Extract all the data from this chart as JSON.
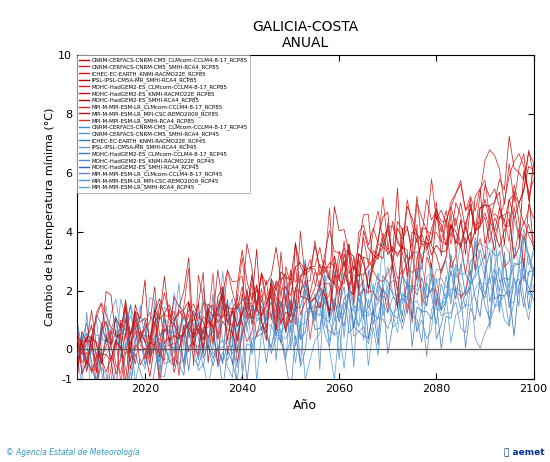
{
  "title": "GALICIA-COSTA",
  "subtitle": "ANUAL",
  "xlabel": "Año",
  "ylabel": "Cambio de la temperatura mínima (°C)",
  "xlim": [
    2006,
    2100
  ],
  "ylim": [
    -1,
    10
  ],
  "yticks": [
    -1,
    0,
    2,
    4,
    6,
    8,
    10
  ],
  "xticks": [
    2020,
    2040,
    2060,
    2080,
    2100
  ],
  "rcp85_color": "#CC2222",
  "rcp45_color": "#5599DD",
  "rcp85_labels": [
    "CNRM-CERFACS-CNRM-CM5_CLMcom-CCLM4-8-17_RCP85",
    "CNRM-CERFACS-CNRM-CM5_SMHI-RCA4_RCP85",
    "ICHEC-EC-EARTH_KNMI-RACMO22E_RCP85",
    "IPSL-IPSL-CM5A-MR_SMHI-RCA4_RCP85",
    "MOHC-HadGEM2-ES_CLMcom-CCLM4-8-17_RCP85",
    "MOHC-HadGEM2-ES_KNMI-RACMO22E_RCP85",
    "MOHC-HadGEM2-ES_SMHI-RCA4_RCP85",
    "MPI-M-MPI-ESM-LR_CLMcom-CCLM4-8-17_RCP85",
    "MPI-M-MPI-ESM-LR_MPI-CSC-REMO2009_RCP85",
    "MPI-M-MPI-ESM-LR_SMHI-RCA4_RCP85"
  ],
  "rcp45_labels": [
    "CNRM-CERFACS-CNRM-CM5_CLMcom-CCLM4-8-17_RCP45",
    "CNRM-CERFACS-CNRM-CM5_SMHI-RCA4_RCP45",
    "ICHEC-EC-EARTH_KNMI-RACMO22E_RCP45",
    "IPSL-IPSL-CM5A-MR_SMHI-RCA4_RCP45",
    "MOHC-HadGEM2-ES_CLMcom-CCLM4-8-17_RCP45",
    "MOHC-HadGEM2-ES_KNMI-RACMO22E_RCP45",
    "MOHC-HadGEM2-ES_SMHI-RCA4_RCP45",
    "MPI-M-MPI-ESM-LR_CLMcom-CCLM4-8-17_RCP45",
    "MPI-M-MPI-ESM-LR_MPI-CSC-REMO2009_RCP45",
    "MPI-M-MPI-ESM-LR_SMHI-RCA4_RCP45"
  ],
  "footer_left": "© Agencia Estatal de Meteorología",
  "footer_color": "#3399CC",
  "background_color": "#FFFFFF",
  "seed": 42,
  "n_years": 95,
  "start_year": 2006
}
